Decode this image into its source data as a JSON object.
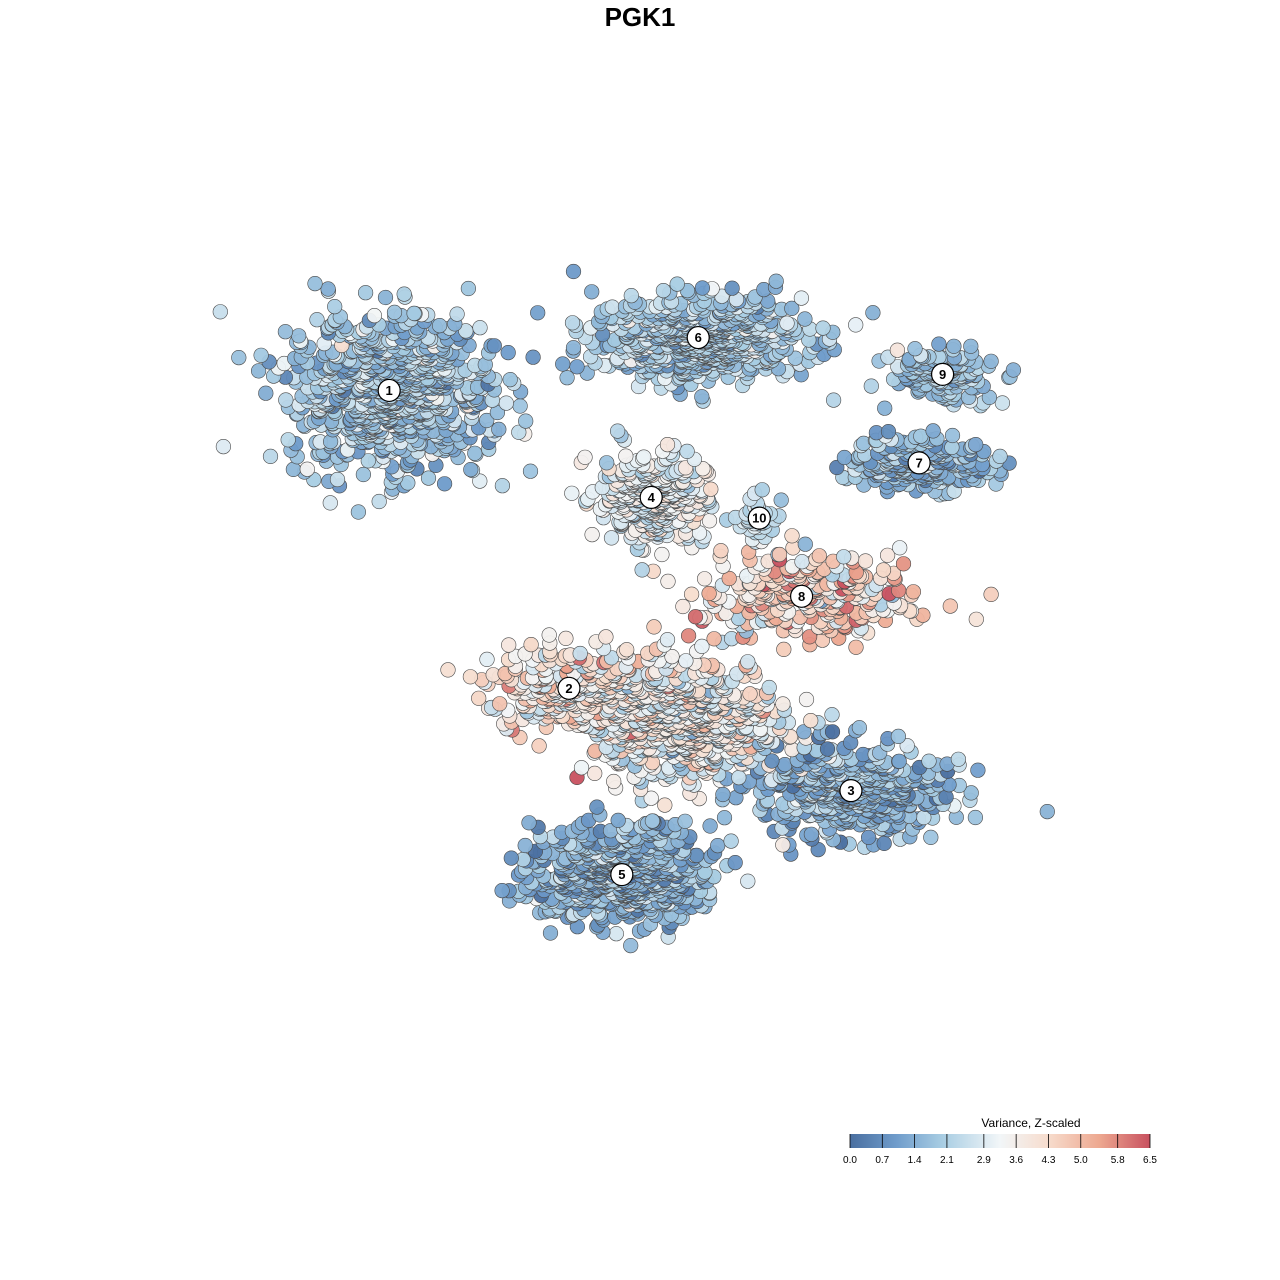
{
  "chart_data": {
    "type": "scatter",
    "title": "PGK1",
    "xlabel": "",
    "ylabel": "",
    "xlim": [
      -40,
      40
    ],
    "ylim": [
      -40,
      40
    ],
    "grid": false,
    "legend_position": "bottom-right",
    "color_scale": {
      "title": "Variance, Z-scaled",
      "min": 0.0,
      "max": 6.5,
      "tick_values": [
        0.0,
        0.7,
        1.4,
        2.1,
        2.9,
        3.6,
        4.3,
        5.0,
        5.8,
        6.5
      ],
      "tick_labels": [
        "0.0",
        "0.7",
        "1.4",
        "2.1",
        "2.9",
        "3.6",
        "4.3",
        "5.0",
        "5.8",
        "6.5"
      ],
      "stops": [
        {
          "value": 0.0,
          "color": "#4a6fa0"
        },
        {
          "value": 1.0,
          "color": "#6f9ccb"
        },
        {
          "value": 2.0,
          "color": "#a8cde3"
        },
        {
          "value": 3.25,
          "color": "#f2f6f8"
        },
        {
          "value": 4.3,
          "color": "#f7dccd"
        },
        {
          "value": 5.4,
          "color": "#eda890"
        },
        {
          "value": 6.5,
          "color": "#c8505f"
        }
      ]
    },
    "clusters": [
      {
        "label": "1",
        "x": -23.9,
        "y": 21.7,
        "spread": [
          8.5,
          6.5
        ],
        "n": 900,
        "mean": 1.9,
        "sd": 0.7
      },
      {
        "label": "6",
        "x": 2.4,
        "y": 26.3,
        "spread": [
          9.0,
          3.6
        ],
        "n": 700,
        "mean": 2.0,
        "sd": 0.6
      },
      {
        "label": "9",
        "x": 23.2,
        "y": 23.1,
        "spread": [
          4.4,
          2.2
        ],
        "n": 160,
        "mean": 1.8,
        "sd": 0.5
      },
      {
        "label": "7",
        "x": 21.2,
        "y": 15.4,
        "spread": [
          6.2,
          2.3
        ],
        "n": 240,
        "mean": 1.7,
        "sd": 0.6
      },
      {
        "label": "4",
        "x": -1.6,
        "y": 12.4,
        "spread": [
          4.6,
          3.8
        ],
        "n": 380,
        "mean": 3.1,
        "sd": 0.6
      },
      {
        "label": "10",
        "x": 7.6,
        "y": 10.6,
        "spread": [
          1.5,
          1.8
        ],
        "n": 45,
        "mean": 2.4,
        "sd": 0.4
      },
      {
        "label": "8",
        "x": 11.2,
        "y": 3.8,
        "spread": [
          9.0,
          4.0
        ],
        "n": 300,
        "mean": 4.3,
        "sd": 1.1
      },
      {
        "label": "2",
        "x": -8.6,
        "y": -4.2,
        "spread": [
          7.0,
          3.6
        ],
        "n": 260,
        "mean": 4.0,
        "sd": 0.9
      },
      {
        "label": "3",
        "x": 15.4,
        "y": -13.1,
        "spread": [
          7.8,
          4.0
        ],
        "n": 500,
        "mean": 1.5,
        "sd": 0.7
      },
      {
        "label": "5",
        "x": -4.1,
        "y": -20.4,
        "spread": [
          7.5,
          4.2
        ],
        "n": 650,
        "mean": 1.5,
        "sd": 0.7
      },
      {
        "label": "",
        "x": 1.0,
        "y": -7.0,
        "spread": [
          8.5,
          5.0
        ],
        "n": 700,
        "mean": 3.3,
        "sd": 0.9
      }
    ]
  }
}
